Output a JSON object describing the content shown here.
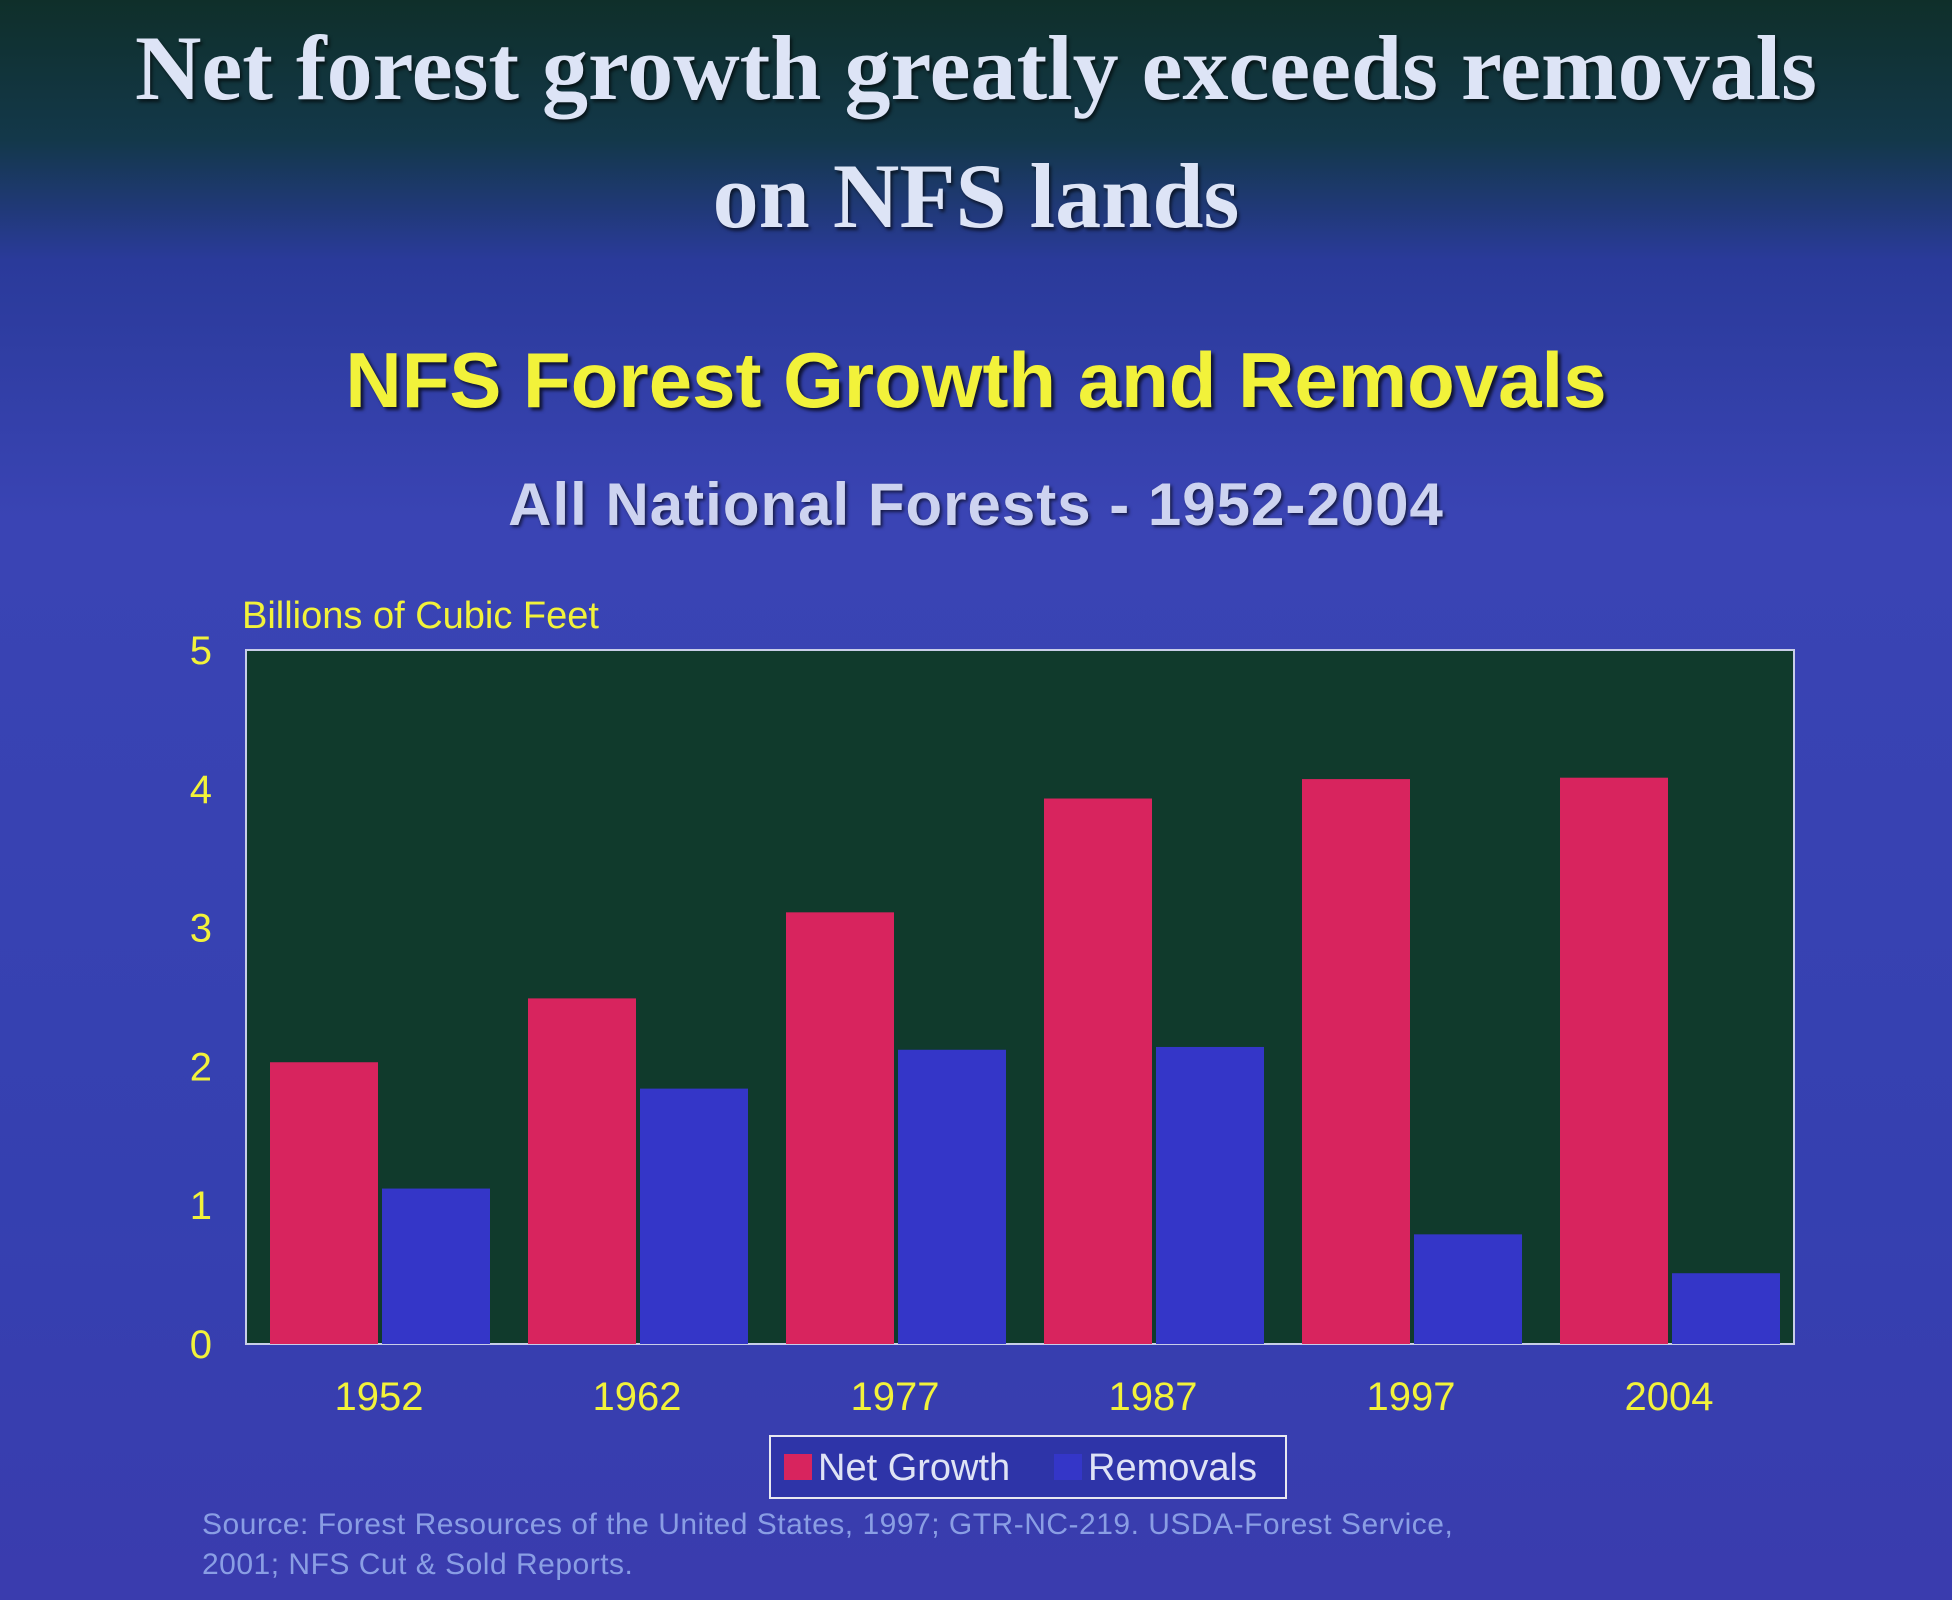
{
  "slide": {
    "heading_line1": "Net forest growth greatly exceeds removals",
    "heading_line2": "on NFS lands",
    "source_line1": "Source: Forest Resources of the United States, 1997; GTR-NC-219. USDA-Forest Service,",
    "source_line2": "2001; NFS Cut & Sold Reports."
  },
  "colors": {
    "net_growth": "#d8245e",
    "removals": "#3436c8",
    "plot_background": "#103a2c",
    "axis_text": "#f2f23a",
    "tick_text": "#f2f23a"
  },
  "chart_data": {
    "type": "bar",
    "title": "NFS Forest Growth and Removals",
    "subtitle": "All National Forests - 1952-2004",
    "ylabel": "Billions of Cubic Feet",
    "xlabel": "",
    "ylim": [
      0,
      5
    ],
    "yticks": [
      "0",
      "1",
      "2",
      "3",
      "4",
      "5"
    ],
    "categories": [
      "1952",
      "1962",
      "1977",
      "1987",
      "1997",
      "2004"
    ],
    "series": [
      {
        "name": "Net Growth",
        "values": [
          2.03,
          2.49,
          3.11,
          3.93,
          4.07,
          4.08
        ]
      },
      {
        "name": "Removals",
        "values": [
          1.12,
          1.84,
          2.12,
          2.14,
          0.79,
          0.51
        ]
      }
    ],
    "legend": "bottom-center",
    "grid": false
  }
}
